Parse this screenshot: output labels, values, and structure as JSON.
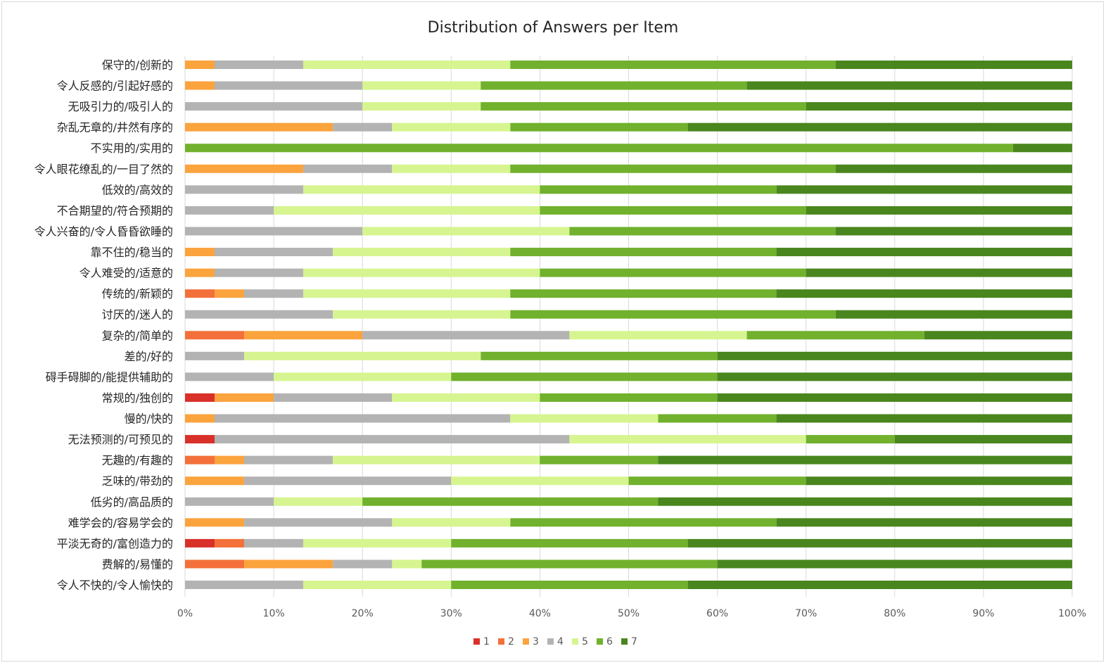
{
  "chart_data": {
    "type": "bar",
    "orientation": "horizontal",
    "stacked": "percent",
    "title": "Distribution of Answers per Item",
    "xlim": [
      0,
      100
    ],
    "x_ticks": [
      "0%",
      "10%",
      "20%",
      "30%",
      "40%",
      "50%",
      "60%",
      "70%",
      "80%",
      "90%",
      "100%"
    ],
    "grid": "vertical",
    "legend_position": "bottom",
    "categories": [
      "保守的/创新的",
      "令人反感的/引起好感的",
      "无吸引力的/吸引人的",
      "杂乱无章的/井然有序的",
      "不实用的/实用的",
      "令人眼花缭乱的/一目了然的",
      "低效的/高效的",
      "不合期望的/符合预期的",
      "令人兴奋的/令人昏昏欲睡的",
      "靠不住的/稳当的",
      "令人难受的/适意的",
      "传统的/新颖的",
      "讨厌的/迷人的",
      "复杂的/简单的",
      "差的/好的",
      "碍手碍脚的/能提供辅助的",
      "常规的/独创的",
      "慢的/快的",
      "无法预测的/可预见的",
      "无趣的/有趣的",
      "乏味的/带劲的",
      "低劣的/高品质的",
      "难学会的/容易学会的",
      "平淡无奇的/富创造力的",
      "费解的/易懂的",
      "令人不快的/令人愉快的"
    ],
    "series": [
      {
        "name": "1",
        "color": "#d9302a",
        "values": [
          0,
          0,
          0,
          0,
          0,
          0,
          0,
          0,
          0,
          0,
          0,
          0,
          0,
          0,
          0,
          0,
          3.33,
          0,
          3.33,
          0,
          0,
          0,
          0,
          3.33,
          0,
          0
        ]
      },
      {
        "name": "2",
        "color": "#f4703a",
        "values": [
          0,
          0,
          0,
          0,
          0,
          0,
          0,
          0,
          0,
          0,
          0,
          3.33,
          0,
          6.67,
          0,
          0,
          0,
          0,
          0,
          3.33,
          0,
          0,
          0,
          3.33,
          6.67,
          0
        ]
      },
      {
        "name": "3",
        "color": "#fba33d",
        "values": [
          3.33,
          3.33,
          0,
          16.67,
          0,
          13.33,
          0,
          0,
          0,
          3.33,
          3.33,
          3.33,
          0,
          13.33,
          0,
          0,
          6.67,
          3.33,
          0,
          3.33,
          6.67,
          0,
          6.67,
          0,
          10,
          0
        ]
      },
      {
        "name": "4",
        "color": "#b3b3b3",
        "values": [
          10,
          16.67,
          20,
          6.67,
          0,
          10,
          13.33,
          10,
          20,
          13.33,
          10,
          6.67,
          16.67,
          23.33,
          6.67,
          10,
          13.33,
          33.33,
          40,
          10,
          23.33,
          10,
          16.67,
          6.67,
          6.67,
          13.33
        ]
      },
      {
        "name": "5",
        "color": "#d6f590",
        "values": [
          23.33,
          13.33,
          13.33,
          13.33,
          0,
          13.33,
          26.67,
          30,
          23.33,
          20,
          26.67,
          23.33,
          20,
          20,
          26.67,
          20,
          16.67,
          16.67,
          26.67,
          23.33,
          20,
          10,
          13.33,
          16.67,
          3.33,
          16.67
        ]
      },
      {
        "name": "6",
        "color": "#71b12d",
        "values": [
          36.67,
          30,
          36.67,
          20,
          93.33,
          36.67,
          26.67,
          30,
          30,
          30,
          30,
          30,
          36.67,
          20,
          26.67,
          30,
          20,
          13.33,
          10,
          13.33,
          20,
          33.33,
          30,
          26.67,
          33.33,
          26.67
        ]
      },
      {
        "name": "7",
        "color": "#4a861e",
        "values": [
          26.67,
          36.67,
          30,
          43.33,
          6.67,
          26.67,
          33.33,
          30,
          26.67,
          33.33,
          30,
          33.33,
          26.67,
          16.67,
          40,
          40,
          40,
          33.33,
          20,
          46.67,
          30,
          46.67,
          33.33,
          43.33,
          40,
          43.33
        ]
      }
    ]
  }
}
